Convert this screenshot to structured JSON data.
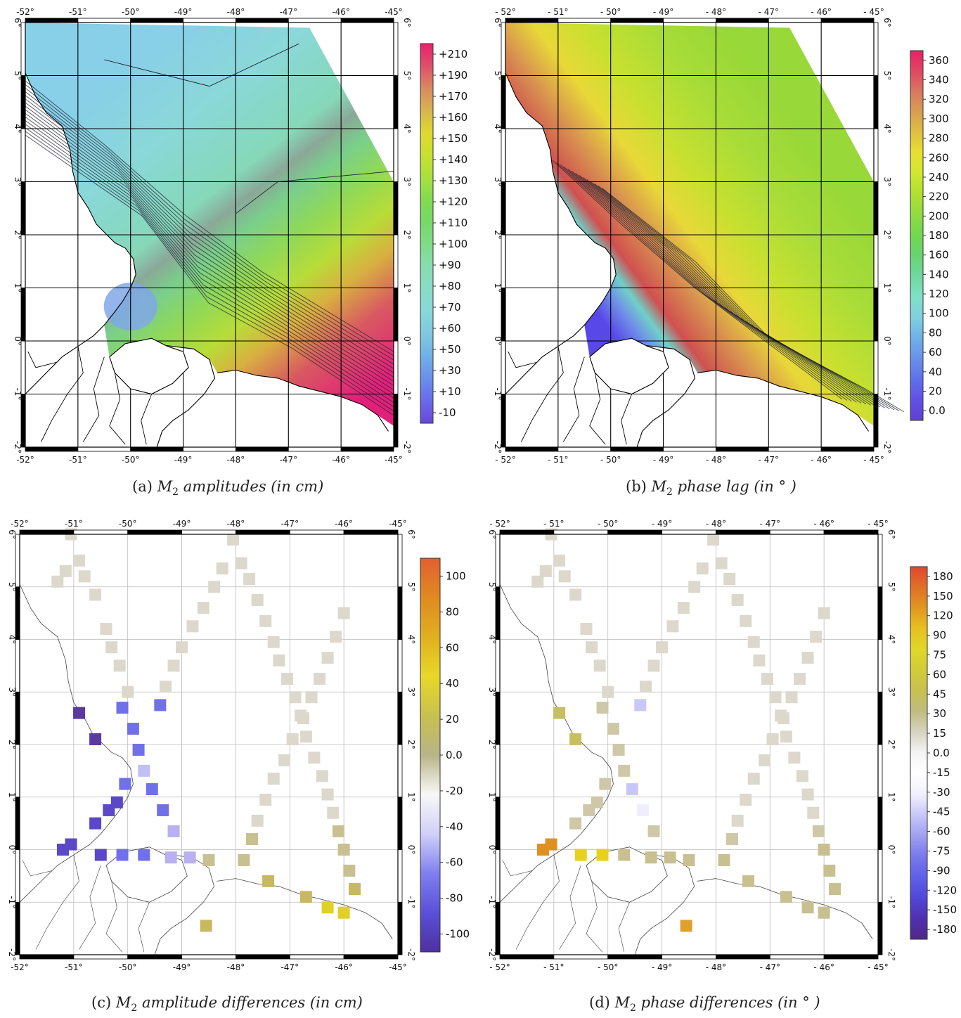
{
  "axes": {
    "lon_ticks": [
      "-52°",
      "-51°",
      "-50°",
      "-49°",
      "-48°",
      "-47°",
      "-46°",
      "-45°"
    ],
    "lon_ticks_spaced": [
      "- 52°",
      "- 51°",
      "- 50°",
      "- 49°",
      "- 48°",
      "- 47°",
      "- 46°",
      "- 45°"
    ],
    "lat_ticks": [
      "6°",
      "5°",
      "4°",
      "3°",
      "2°",
      "1°",
      "0°",
      "-1°",
      "-2°"
    ],
    "lon_range": [
      -52,
      -45
    ],
    "lat_range": [
      -2,
      6
    ]
  },
  "panels": [
    {
      "id": "a",
      "caption_label": "(a)",
      "caption_text": "M2 amplitudes (in cm)",
      "caption_parts": {
        "pre": "M",
        "sub": "2",
        "post": " amplitudes (in cm)"
      },
      "colorbar_labels": [
        "+210",
        "+190",
        "+170",
        "+160",
        "+150",
        "+140",
        "+130",
        "+120",
        "+110",
        "+100",
        "+90",
        "+80",
        "+70",
        "+60",
        "+50",
        "+30",
        "+10",
        "-10"
      ],
      "colorbar_colors": [
        "#e8206e",
        "#e0506a",
        "#d98a60",
        "#d6b650",
        "#e0d830",
        "#c8e030",
        "#a8e040",
        "#80dc50",
        "#78d868",
        "#80dc88",
        "#88dcb0",
        "#88dcc8",
        "#88d8d8",
        "#80c8e0",
        "#70b0e8",
        "#6a90ec",
        "#6a6aec",
        "#6848d8"
      ]
    },
    {
      "id": "b",
      "caption_label": "(b)",
      "caption_text": "M2 phase lag (in °)",
      "caption_parts": {
        "pre": "M",
        "sub": "2",
        "post": " phase lag (in  ° )"
      },
      "colorbar_labels": [
        "360",
        "340",
        "320",
        "300",
        "280",
        "260",
        "240",
        "220",
        "200",
        "180",
        "160",
        "140",
        "120",
        "100",
        "80",
        "60",
        "40",
        "20",
        "0.0"
      ],
      "colorbar_colors": [
        "#e82068",
        "#e04860",
        "#d87860",
        "#d8a050",
        "#e0c040",
        "#e8e030",
        "#d0e830",
        "#b0e030",
        "#90dc40",
        "#70d850",
        "#68d470",
        "#70d8a0",
        "#80e0c8",
        "#80d0e0",
        "#70b0e8",
        "#6890ec",
        "#6070ec",
        "#6050e8",
        "#6040d0"
      ]
    },
    {
      "id": "c",
      "caption_label": "(c)",
      "caption_text": "M2 amplitude differences (in cm)",
      "caption_parts": {
        "pre": "M",
        "sub": "2",
        "post": " amplitude differences (in cm)"
      },
      "colorbar_labels": [
        "100",
        "80",
        "60",
        "40",
        "20",
        "0.0",
        "-20",
        "-40",
        "-60",
        "-80",
        "-100"
      ],
      "colorbar_colors": [
        "#e06030",
        "#e08a20",
        "#e0b020",
        "#e8d828",
        "#c8c050",
        "#b8b488",
        "#f8f8f8",
        "#d0d0f8",
        "#8080f0",
        "#5a50d8",
        "#5030a0"
      ]
    },
    {
      "id": "d",
      "caption_label": "(d)",
      "caption_text": "M2 phase differences (in °)",
      "caption_parts": {
        "pre": "M",
        "sub": "2",
        "post": " phase differences (in  ° )"
      },
      "colorbar_labels": [
        "180",
        "150",
        "120",
        "90",
        "75",
        "60",
        "45",
        "30",
        "15",
        "0.0",
        "-15",
        "-30",
        "-45",
        "-60",
        "-75",
        "-90",
        "-120",
        "-150",
        "-180"
      ],
      "colorbar_colors": [
        "#e04830",
        "#e07028",
        "#e09820",
        "#e8c020",
        "#e0d828",
        "#d0cc38",
        "#c8c050",
        "#c0bc80",
        "#d8d4c0",
        "#f4f4f4",
        "#ffffff",
        "#f0f0ff",
        "#c8c8f8",
        "#a0a0f0",
        "#7878ec",
        "#6060e8",
        "#5048d8",
        "#5030b0",
        "#502888"
      ]
    }
  ]
}
